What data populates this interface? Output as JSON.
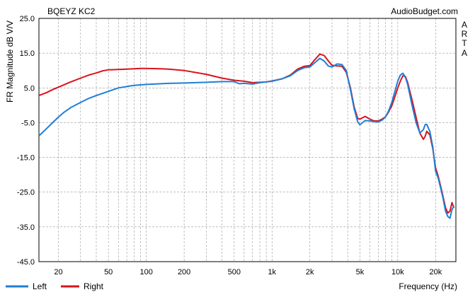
{
  "chart_data": {
    "type": "line",
    "title": "BQEYZ KC2",
    "watermark": "AudioBudget.com",
    "side_label": [
      "A",
      "R",
      "T",
      "A"
    ],
    "xlabel": "Frequency (Hz)",
    "ylabel": "FR Magnitude dB V/V",
    "x_scale": "log",
    "xlim": [
      14,
      29000
    ],
    "ylim": [
      -45,
      25
    ],
    "y_ticks": [
      {
        "value": 25,
        "label": "25.0"
      },
      {
        "value": 15,
        "label": "15.0"
      },
      {
        "value": 5,
        "label": "5.0"
      },
      {
        "value": -5,
        "label": "-5.0"
      },
      {
        "value": -15,
        "label": "-15.0"
      },
      {
        "value": -25,
        "label": "-25.0"
      },
      {
        "value": -35,
        "label": "-35.0"
      },
      {
        "value": -45,
        "label": "-45.0"
      }
    ],
    "x_ticks": [
      {
        "value": 20,
        "label": "20"
      },
      {
        "value": 50,
        "label": "50"
      },
      {
        "value": 100,
        "label": "100"
      },
      {
        "value": 200,
        "label": "200"
      },
      {
        "value": 500,
        "label": "500"
      },
      {
        "value": 1000,
        "label": "1k"
      },
      {
        "value": 2000,
        "label": "2k"
      },
      {
        "value": 5000,
        "label": "5k"
      },
      {
        "value": 10000,
        "label": "10k"
      },
      {
        "value": 20000,
        "label": "20k"
      }
    ],
    "grid": true,
    "legend_position": "bottom-left",
    "series": [
      {
        "name": "Left",
        "color": "#1f7fd6",
        "points": [
          [
            14,
            -8.8
          ],
          [
            16,
            -6.8
          ],
          [
            18,
            -5.0
          ],
          [
            20,
            -3.4
          ],
          [
            22,
            -2.1
          ],
          [
            25,
            -0.7
          ],
          [
            30,
            0.8
          ],
          [
            35,
            2.0
          ],
          [
            40,
            2.8
          ],
          [
            50,
            4.0
          ],
          [
            60,
            5.0
          ],
          [
            70,
            5.4
          ],
          [
            80,
            5.7
          ],
          [
            100,
            6.0
          ],
          [
            150,
            6.3
          ],
          [
            200,
            6.4
          ],
          [
            300,
            6.6
          ],
          [
            400,
            6.8
          ],
          [
            500,
            6.8
          ],
          [
            550,
            6.2
          ],
          [
            600,
            6.3
          ],
          [
            700,
            6.1
          ],
          [
            800,
            6.5
          ],
          [
            1000,
            6.9
          ],
          [
            1200,
            7.6
          ],
          [
            1400,
            8.5
          ],
          [
            1600,
            10.0
          ],
          [
            1800,
            10.8
          ],
          [
            2000,
            11.0
          ],
          [
            2200,
            12.3
          ],
          [
            2400,
            13.5
          ],
          [
            2600,
            12.7
          ],
          [
            2800,
            11.3
          ],
          [
            3000,
            11.0
          ],
          [
            3300,
            11.9
          ],
          [
            3600,
            11.7
          ],
          [
            3900,
            10.0
          ],
          [
            4200,
            4.5
          ],
          [
            4500,
            -1.0
          ],
          [
            4800,
            -4.8
          ],
          [
            5000,
            -5.6
          ],
          [
            5500,
            -4.4
          ],
          [
            6000,
            -4.5
          ],
          [
            6500,
            -4.7
          ],
          [
            7000,
            -4.8
          ],
          [
            7500,
            -4.3
          ],
          [
            8000,
            -3.3
          ],
          [
            8500,
            -1.5
          ],
          [
            9000,
            1.0
          ],
          [
            9500,
            4.0
          ],
          [
            10000,
            7.0
          ],
          [
            10500,
            8.7
          ],
          [
            11000,
            9.2
          ],
          [
            11500,
            8.0
          ],
          [
            12000,
            6.0
          ],
          [
            13000,
            0.0
          ],
          [
            14000,
            -5.0
          ],
          [
            15000,
            -8.0
          ],
          [
            16000,
            -7.0
          ],
          [
            16500,
            -5.6
          ],
          [
            17000,
            -5.5
          ],
          [
            18000,
            -7.5
          ],
          [
            19000,
            -12.0
          ],
          [
            20000,
            -19.0
          ],
          [
            21000,
            -21.0
          ],
          [
            22000,
            -24.0
          ],
          [
            23000,
            -27.0
          ],
          [
            24000,
            -30.5
          ],
          [
            25000,
            -32.0
          ],
          [
            26000,
            -32.5
          ],
          [
            27000,
            -30.0
          ],
          [
            28000,
            -29.0
          ]
        ]
      },
      {
        "name": "Right",
        "color": "#d9131b",
        "points": [
          [
            14,
            2.8
          ],
          [
            16,
            3.6
          ],
          [
            18,
            4.5
          ],
          [
            20,
            5.2
          ],
          [
            25,
            6.7
          ],
          [
            30,
            7.8
          ],
          [
            35,
            8.7
          ],
          [
            40,
            9.3
          ],
          [
            45,
            9.9
          ],
          [
            50,
            10.2
          ],
          [
            60,
            10.3
          ],
          [
            70,
            10.4
          ],
          [
            80,
            10.5
          ],
          [
            90,
            10.6
          ],
          [
            100,
            10.6
          ],
          [
            130,
            10.5
          ],
          [
            150,
            10.4
          ],
          [
            200,
            10.0
          ],
          [
            300,
            8.9
          ],
          [
            400,
            7.8
          ],
          [
            500,
            7.2
          ],
          [
            600,
            6.9
          ],
          [
            700,
            6.5
          ],
          [
            800,
            6.6
          ],
          [
            900,
            6.7
          ],
          [
            1000,
            7.0
          ],
          [
            1200,
            7.6
          ],
          [
            1400,
            8.7
          ],
          [
            1600,
            10.4
          ],
          [
            1800,
            11.2
          ],
          [
            2000,
            11.4
          ],
          [
            2200,
            13.2
          ],
          [
            2400,
            14.7
          ],
          [
            2600,
            14.3
          ],
          [
            2800,
            12.8
          ],
          [
            3000,
            11.5
          ],
          [
            3300,
            11.3
          ],
          [
            3600,
            11.2
          ],
          [
            3900,
            9.5
          ],
          [
            4200,
            5.0
          ],
          [
            4500,
            -0.5
          ],
          [
            4800,
            -3.8
          ],
          [
            5000,
            -4.0
          ],
          [
            5500,
            -3.2
          ],
          [
            6000,
            -4.0
          ],
          [
            6500,
            -4.5
          ],
          [
            7000,
            -4.5
          ],
          [
            7500,
            -4.0
          ],
          [
            8000,
            -3.3
          ],
          [
            8500,
            -1.8
          ],
          [
            9000,
            0.0
          ],
          [
            9500,
            2.5
          ],
          [
            10000,
            5.0
          ],
          [
            10500,
            7.0
          ],
          [
            11000,
            8.5
          ],
          [
            11500,
            8.3
          ],
          [
            12000,
            6.5
          ],
          [
            13000,
            1.5
          ],
          [
            14000,
            -3.5
          ],
          [
            15000,
            -8.0
          ],
          [
            16000,
            -9.8
          ],
          [
            16500,
            -9.0
          ],
          [
            17000,
            -7.5
          ],
          [
            18000,
            -8.5
          ],
          [
            19000,
            -12.5
          ],
          [
            20000,
            -18.0
          ],
          [
            21000,
            -20.5
          ],
          [
            22000,
            -23.5
          ],
          [
            23000,
            -26.5
          ],
          [
            24000,
            -29.5
          ],
          [
            25000,
            -31.0
          ],
          [
            26000,
            -30.5
          ],
          [
            27000,
            -28.0
          ],
          [
            28000,
            -29.5
          ]
        ]
      }
    ]
  }
}
